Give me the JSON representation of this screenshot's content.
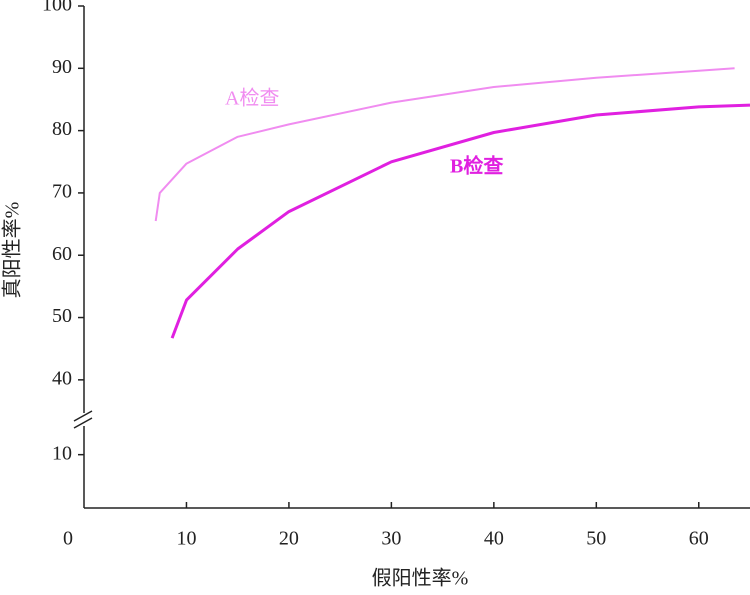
{
  "chart_data": {
    "type": "line",
    "x_label": "假阳性率%",
    "y_label": "真阳性率%",
    "xlim": [
      0,
      65
    ],
    "xticks": [
      0,
      10,
      20,
      30,
      40,
      50,
      60
    ],
    "ylim": [
      0,
      100
    ],
    "yticks": [
      10,
      40,
      50,
      60,
      70,
      80,
      90,
      100
    ],
    "y_break": [
      15,
      35
    ],
    "series": [
      {
        "name": "A检查",
        "color": "#f08cf0",
        "x": [
          7,
          7.4,
          10,
          15,
          20,
          30,
          40,
          50,
          60,
          63.5
        ],
        "values": [
          65.5,
          70,
          74.7,
          79,
          81,
          84.5,
          87,
          88.5,
          89.6,
          90
        ]
      },
      {
        "name": "B检查",
        "color": "#e020e0",
        "x": [
          8.6,
          10,
          15,
          20,
          30,
          40,
          50,
          60,
          65
        ],
        "values": [
          46.7,
          52.8,
          61,
          67,
          75,
          79.7,
          82.5,
          83.8,
          84.1
        ]
      }
    ]
  }
}
